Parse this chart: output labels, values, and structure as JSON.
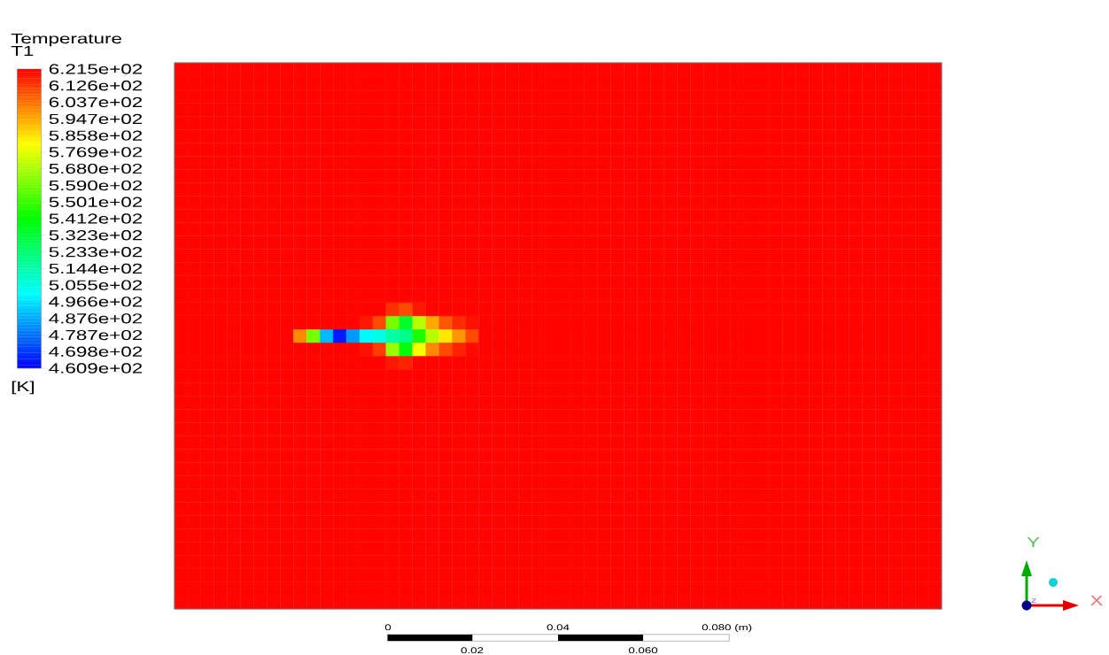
{
  "chart_data": {
    "type": "heatmap",
    "title": "Temperature",
    "subtitle": "T1",
    "clabel": "[K]",
    "annotations": [
      "0",
      "0.04",
      "0.080 (m)",
      "0.02",
      "0.060",
      "Y",
      "X",
      "Z"
    ],
    "categories": [
      null,
      null,
      null,
      null,
      null,
      null,
      null,
      null,
      null,
      null,
      null,
      null,
      null,
      null,
      null,
      null,
      null,
      null,
      null,
      null,
      null,
      null,
      null,
      null,
      null,
      null,
      null,
      null,
      null,
      null,
      null,
      null,
      null,
      null,
      null,
      null,
      null,
      null,
      null,
      null,
      null,
      null,
      null,
      null,
      null,
      null,
      null,
      null,
      null,
      null,
      null,
      null,
      null,
      null,
      null,
      null,
      null,
      null
    ],
    "y_categories": [
      null,
      null,
      null,
      null,
      null,
      null,
      null,
      null,
      null,
      null,
      null,
      null,
      null,
      null,
      null,
      null,
      null,
      null,
      null,
      null,
      null,
      null,
      null,
      null,
      null,
      null,
      null,
      null,
      null,
      null,
      null,
      null,
      null,
      null,
      null,
      null,
      null,
      null,
      null,
      null,
      null
    ],
    "clim": [
      460.9,
      621.5
    ],
    "cticks": [
      {
        "value": 621.5,
        "label": "6.215e+02"
      },
      {
        "value": 612.6,
        "label": "6.126e+02"
      },
      {
        "value": 603.7,
        "label": "6.037e+02"
      },
      {
        "value": 594.7,
        "label": "5.947e+02"
      },
      {
        "value": 585.8,
        "label": "5.858e+02"
      },
      {
        "value": 576.9,
        "label": "5.769e+02"
      },
      {
        "value": 568.0,
        "label": "5.680e+02"
      },
      {
        "value": 559.0,
        "label": "5.590e+02"
      },
      {
        "value": 550.1,
        "label": "5.501e+02"
      },
      {
        "value": 541.2,
        "label": "5.412e+02"
      },
      {
        "value": 532.3,
        "label": "5.323e+02"
      },
      {
        "value": 523.3,
        "label": "5.233e+02"
      },
      {
        "value": 514.4,
        "label": "5.144e+02"
      },
      {
        "value": 505.5,
        "label": "5.055e+02"
      },
      {
        "value": 496.6,
        "label": "4.966e+02"
      },
      {
        "value": 487.6,
        "label": "4.876e+02"
      },
      {
        "value": 478.7,
        "label": "4.787e+02"
      },
      {
        "value": 469.8,
        "label": "4.698e+02"
      },
      {
        "value": 460.9,
        "label": "4.609e+02"
      }
    ],
    "cells": [
      [
        621,
        621,
        621,
        621,
        621,
        621,
        621,
        621,
        621,
        621,
        621,
        621,
        621,
        621,
        621,
        621,
        621,
        621,
        621,
        621,
        621,
        621,
        621,
        621,
        621,
        621,
        621,
        621,
        621,
        621,
        621,
        621,
        621,
        621,
        621,
        621,
        621,
        621,
        621,
        621,
        621,
        621,
        621,
        621,
        621,
        621,
        621,
        621,
        621,
        621,
        621,
        621,
        621,
        621,
        621,
        621,
        621,
        621
      ],
      [
        621,
        621,
        621,
        621,
        621,
        621,
        621,
        621,
        621,
        621,
        621,
        621,
        621,
        621,
        621,
        621,
        621,
        621,
        621,
        621,
        621,
        621,
        621,
        621,
        621,
        621,
        621,
        621,
        621,
        621,
        621,
        621,
        621,
        621,
        621,
        621,
        621,
        621,
        621,
        621,
        621,
        621,
        621,
        621,
        621,
        621,
        621,
        621,
        621,
        621,
        621,
        621,
        621,
        621,
        621,
        621,
        621,
        621
      ],
      [
        621,
        621,
        621,
        621,
        621,
        621,
        621,
        621,
        621,
        621,
        621,
        621,
        621,
        621,
        621,
        621,
        621,
        621,
        621,
        621,
        621,
        621,
        621,
        621,
        621,
        621,
        621,
        621,
        621,
        621,
        621,
        621,
        621,
        621,
        621,
        621,
        621,
        621,
        621,
        621,
        621,
        621,
        621,
        621,
        621,
        621,
        621,
        621,
        621,
        621,
        621,
        621,
        621,
        621,
        621,
        621,
        621,
        621
      ],
      [
        621,
        621,
        621,
        621,
        621,
        621,
        621,
        621,
        621,
        621,
        621,
        621,
        621,
        621,
        621,
        621,
        621,
        621,
        621,
        621,
        621,
        621,
        621,
        621,
        621,
        621,
        621,
        621,
        621,
        621,
        621,
        621,
        621,
        621,
        621,
        621,
        621,
        621,
        621,
        621,
        621,
        621,
        621,
        621,
        621,
        621,
        621,
        621,
        621,
        621,
        621,
        621,
        621,
        621,
        621,
        621,
        621,
        621
      ],
      [
        621,
        621,
        621,
        621,
        621,
        621,
        621,
        621,
        621,
        621,
        621,
        621,
        621,
        621,
        621,
        621,
        621,
        621,
        621,
        621,
        621,
        621,
        621,
        621,
        621,
        621,
        621,
        621,
        621,
        621,
        621,
        621,
        621,
        621,
        621,
        621,
        621,
        621,
        621,
        621,
        621,
        621,
        621,
        621,
        621,
        621,
        621,
        621,
        621,
        621,
        621,
        621,
        621,
        621,
        621,
        621,
        621,
        621
      ],
      [
        621,
        621,
        621,
        621,
        621,
        621,
        621,
        621,
        621,
        621,
        621,
        621,
        621,
        621,
        621,
        621,
        621,
        621,
        621,
        621,
        621,
        621,
        621,
        621,
        621,
        621,
        621,
        621,
        621,
        621,
        621,
        621,
        621,
        621,
        621,
        621,
        621,
        621,
        621,
        621,
        621,
        621,
        621,
        621,
        621,
        621,
        621,
        621,
        621,
        621,
        621,
        621,
        621,
        621,
        621,
        621,
        621,
        621
      ],
      [
        621,
        621,
        621,
        621,
        621,
        621,
        621,
        621,
        621,
        621,
        621,
        621,
        621,
        621,
        621,
        621,
        621,
        621,
        621,
        621,
        621,
        621,
        621,
        621,
        621,
        621,
        621,
        621,
        621,
        621,
        621,
        621,
        621,
        621,
        621,
        621,
        621,
        621,
        621,
        621,
        621,
        621,
        621,
        621,
        621,
        621,
        621,
        621,
        621,
        621,
        621,
        621,
        621,
        621,
        621,
        621,
        621,
        621
      ],
      [
        621,
        621,
        621,
        621,
        621,
        621,
        621,
        621,
        621,
        621,
        621,
        621,
        621,
        621,
        621,
        621,
        621,
        621,
        621,
        621,
        621,
        621,
        621,
        621,
        621,
        621,
        621,
        621,
        621,
        621,
        621,
        621,
        621,
        621,
        621,
        621,
        621,
        621,
        621,
        621,
        621,
        621,
        621,
        621,
        621,
        621,
        621,
        621,
        621,
        621,
        621,
        621,
        621,
        621,
        621,
        621,
        621,
        621
      ],
      [
        621,
        621,
        621,
        621,
        621,
        621,
        621,
        621,
        621,
        621,
        621,
        621,
        621,
        621,
        621,
        621,
        621,
        621,
        621,
        621,
        621,
        621,
        621,
        621,
        621,
        621,
        621,
        621,
        621,
        621,
        621,
        621,
        621,
        621,
        621,
        621,
        621,
        621,
        621,
        621,
        621,
        621,
        621,
        621,
        621,
        621,
        621,
        621,
        621,
        621,
        621,
        621,
        621,
        621,
        621,
        621,
        621,
        621
      ],
      [
        621,
        621,
        621,
        621,
        621,
        621,
        621,
        621,
        621,
        621,
        621,
        621,
        621,
        621,
        621,
        621,
        621,
        621,
        621,
        621,
        621,
        621,
        621,
        621,
        621,
        621,
        621,
        621,
        621,
        621,
        621,
        621,
        621,
        621,
        621,
        621,
        621,
        621,
        621,
        621,
        621,
        621,
        621,
        621,
        621,
        621,
        621,
        621,
        621,
        621,
        621,
        621,
        621,
        621,
        621,
        621,
        621,
        621
      ],
      [
        621,
        621,
        621,
        621,
        621,
        621,
        621,
        621,
        621,
        621,
        621,
        621,
        621,
        621,
        621,
        621,
        621,
        621,
        621,
        621,
        621,
        621,
        621,
        621,
        621,
        621,
        621,
        621,
        621,
        621,
        621,
        621,
        621,
        621,
        621,
        621,
        621,
        621,
        621,
        621,
        621,
        621,
        621,
        621,
        621,
        621,
        621,
        621,
        621,
        621,
        621,
        621,
        621,
        621,
        621,
        621,
        621,
        621
      ],
      [
        621,
        621,
        621,
        621,
        621,
        621,
        621,
        621,
        621,
        621,
        621,
        621,
        621,
        621,
        621,
        621,
        621,
        621,
        621,
        621,
        621,
        621,
        621,
        621,
        621,
        621,
        621,
        621,
        621,
        621,
        621,
        621,
        621,
        621,
        621,
        621,
        621,
        621,
        621,
        621,
        621,
        621,
        621,
        621,
        621,
        621,
        621,
        621,
        621,
        621,
        621,
        621,
        621,
        621,
        621,
        621,
        621,
        621
      ],
      [
        621,
        621,
        621,
        621,
        621,
        621,
        621,
        621,
        621,
        621,
        621,
        621,
        621,
        621,
        621,
        621,
        621,
        621,
        621,
        621,
        621,
        621,
        621,
        621,
        621,
        621,
        621,
        621,
        621,
        621,
        621,
        621,
        621,
        621,
        621,
        621,
        621,
        621,
        621,
        621,
        621,
        621,
        621,
        621,
        621,
        621,
        621,
        621,
        621,
        621,
        621,
        621,
        621,
        621,
        621,
        621,
        621,
        621
      ],
      [
        621,
        621,
        621,
        621,
        621,
        621,
        621,
        621,
        621,
        621,
        621,
        621,
        621,
        621,
        621,
        621,
        621,
        621,
        621,
        621,
        621,
        621,
        621,
        621,
        621,
        621,
        621,
        621,
        621,
        621,
        621,
        621,
        621,
        621,
        621,
        621,
        621,
        621,
        621,
        621,
        621,
        621,
        621,
        621,
        621,
        621,
        621,
        621,
        621,
        621,
        621,
        621,
        621,
        621,
        621,
        621,
        621,
        621
      ],
      [
        621,
        621,
        621,
        621,
        621,
        621,
        621,
        621,
        621,
        621,
        621,
        621,
        621,
        621,
        621,
        621,
        621,
        621,
        621,
        621,
        621,
        621,
        621,
        621,
        621,
        621,
        621,
        621,
        621,
        621,
        621,
        621,
        621,
        621,
        621,
        621,
        621,
        621,
        621,
        621,
        621,
        621,
        621,
        621,
        621,
        621,
        621,
        621,
        621,
        621,
        621,
        621,
        621,
        621,
        621,
        621,
        621,
        621
      ],
      [
        621,
        621,
        621,
        621,
        621,
        621,
        621,
        621,
        621,
        621,
        621,
        621,
        621,
        621,
        621,
        621,
        621,
        621,
        621,
        621,
        621,
        621,
        621,
        621,
        621,
        621,
        621,
        621,
        621,
        621,
        621,
        621,
        621,
        621,
        621,
        621,
        621,
        621,
        621,
        621,
        621,
        621,
        621,
        621,
        621,
        621,
        621,
        621,
        621,
        621,
        621,
        621,
        621,
        621,
        621,
        621,
        621,
        621
      ],
      [
        621,
        621,
        621,
        621,
        621,
        621,
        621,
        621,
        621,
        621,
        621,
        621,
        621,
        621,
        621,
        621,
        621,
        621,
        621,
        621,
        621,
        621,
        621,
        621,
        621,
        621,
        621,
        621,
        621,
        621,
        621,
        621,
        621,
        621,
        621,
        621,
        621,
        621,
        621,
        621,
        621,
        621,
        621,
        621,
        621,
        621,
        621,
        621,
        621,
        621,
        621,
        621,
        621,
        621,
        621,
        621,
        621,
        621
      ],
      [
        621,
        621,
        621,
        621,
        621,
        621,
        621,
        621,
        621,
        621,
        621,
        621,
        621,
        621,
        621,
        621,
        621,
        621,
        621,
        621,
        621,
        621,
        621,
        621,
        621,
        621,
        621,
        621,
        621,
        621,
        621,
        621,
        621,
        621,
        621,
        621,
        621,
        621,
        621,
        621,
        621,
        621,
        621,
        621,
        621,
        621,
        621,
        621,
        621,
        621,
        621,
        621,
        621,
        621,
        621,
        621,
        621,
        621
      ],
      [
        621,
        621,
        621,
        621,
        621,
        621,
        621,
        621,
        621,
        621,
        621,
        621,
        621,
        621,
        621,
        621,
        614,
        610,
        618,
        621,
        621,
        621,
        621,
        621,
        621,
        621,
        621,
        621,
        621,
        621,
        621,
        621,
        621,
        621,
        621,
        621,
        621,
        621,
        621,
        621,
        621,
        621,
        621,
        621,
        621,
        621,
        621,
        621,
        621,
        621,
        621,
        621,
        621,
        621,
        621,
        621,
        621,
        621
      ],
      [
        621,
        621,
        621,
        621,
        621,
        621,
        621,
        621,
        621,
        621,
        621,
        621,
        621,
        621,
        618,
        610,
        560,
        535,
        570,
        595,
        608,
        615,
        619,
        621,
        621,
        621,
        621,
        621,
        621,
        621,
        621,
        621,
        621,
        621,
        621,
        621,
        621,
        621,
        621,
        621,
        621,
        621,
        621,
        621,
        621,
        621,
        621,
        621,
        621,
        621,
        621,
        621,
        621,
        621,
        621,
        621,
        621,
        621
      ],
      [
        621,
        621,
        621,
        621,
        621,
        621,
        621,
        621,
        621,
        600,
        560,
        490,
        465,
        485,
        500,
        505,
        515,
        520,
        545,
        570,
        585,
        598,
        610,
        621,
        621,
        621,
        621,
        621,
        621,
        621,
        621,
        621,
        621,
        621,
        621,
        621,
        621,
        621,
        621,
        621,
        621,
        621,
        621,
        621,
        621,
        621,
        621,
        621,
        621,
        621,
        621,
        621,
        621,
        621,
        621,
        621,
        621,
        621
      ],
      [
        621,
        621,
        621,
        621,
        621,
        621,
        621,
        621,
        621,
        621,
        621,
        621,
        621,
        621,
        619,
        612,
        565,
        540,
        580,
        600,
        610,
        616,
        620,
        621,
        621,
        621,
        621,
        621,
        621,
        621,
        621,
        621,
        621,
        621,
        621,
        621,
        621,
        621,
        621,
        621,
        621,
        621,
        621,
        621,
        621,
        621,
        621,
        621,
        621,
        621,
        621,
        621,
        621,
        621,
        621,
        621,
        621,
        621
      ],
      [
        621,
        621,
        621,
        621,
        621,
        621,
        621,
        621,
        621,
        621,
        621,
        621,
        621,
        621,
        621,
        621,
        618,
        616,
        621,
        621,
        621,
        621,
        621,
        621,
        621,
        621,
        621,
        621,
        621,
        621,
        621,
        621,
        621,
        621,
        621,
        621,
        621,
        621,
        621,
        621,
        621,
        621,
        621,
        621,
        621,
        621,
        621,
        621,
        621,
        621,
        621,
        621,
        621,
        621,
        621,
        621,
        621,
        621
      ],
      [
        621,
        621,
        621,
        621,
        621,
        621,
        621,
        621,
        621,
        621,
        621,
        621,
        621,
        621,
        621,
        621,
        621,
        621,
        621,
        621,
        621,
        621,
        621,
        621,
        621,
        621,
        621,
        621,
        621,
        621,
        621,
        621,
        621,
        621,
        621,
        621,
        621,
        621,
        621,
        621,
        621,
        621,
        621,
        621,
        621,
        621,
        621,
        621,
        621,
        621,
        621,
        621,
        621,
        621,
        621,
        621,
        621,
        621
      ],
      [
        621,
        621,
        621,
        621,
        621,
        621,
        621,
        621,
        621,
        621,
        621,
        621,
        621,
        621,
        621,
        621,
        621,
        621,
        621,
        621,
        621,
        621,
        621,
        621,
        621,
        621,
        621,
        621,
        621,
        621,
        621,
        621,
        621,
        621,
        621,
        621,
        621,
        621,
        621,
        621,
        621,
        621,
        621,
        621,
        621,
        621,
        621,
        621,
        621,
        621,
        621,
        621,
        621,
        621,
        621,
        621,
        621,
        621
      ],
      [
        621,
        621,
        621,
        621,
        621,
        621,
        621,
        621,
        621,
        621,
        621,
        621,
        621,
        621,
        621,
        621,
        621,
        621,
        621,
        621,
        621,
        621,
        621,
        621,
        621,
        621,
        621,
        621,
        621,
        621,
        621,
        621,
        621,
        621,
        621,
        621,
        621,
        621,
        621,
        621,
        621,
        621,
        621,
        621,
        621,
        621,
        621,
        621,
        621,
        621,
        621,
        621,
        621,
        621,
        621,
        621,
        621,
        621
      ],
      [
        621,
        621,
        621,
        621,
        621,
        621,
        621,
        621,
        621,
        621,
        621,
        621,
        621,
        621,
        621,
        621,
        621,
        621,
        621,
        621,
        621,
        621,
        621,
        621,
        621,
        621,
        621,
        621,
        621,
        621,
        621,
        621,
        621,
        621,
        621,
        621,
        621,
        621,
        621,
        621,
        621,
        621,
        621,
        621,
        621,
        621,
        621,
        621,
        621,
        621,
        621,
        621,
        621,
        621,
        621,
        621,
        621,
        621
      ],
      [
        621,
        621,
        621,
        621,
        621,
        621,
        621,
        621,
        621,
        621,
        621,
        621,
        621,
        621,
        621,
        621,
        621,
        621,
        621,
        621,
        621,
        621,
        621,
        621,
        621,
        621,
        621,
        621,
        621,
        621,
        621,
        621,
        621,
        621,
        621,
        621,
        621,
        621,
        621,
        621,
        621,
        621,
        621,
        621,
        621,
        621,
        621,
        621,
        621,
        621,
        621,
        621,
        621,
        621,
        621,
        621,
        621,
        621
      ],
      [
        621,
        621,
        621,
        621,
        621,
        621,
        621,
        621,
        621,
        621,
        621,
        621,
        621,
        621,
        621,
        621,
        621,
        621,
        621,
        621,
        621,
        621,
        621,
        621,
        621,
        621,
        621,
        621,
        621,
        621,
        621,
        621,
        621,
        621,
        621,
        621,
        621,
        621,
        621,
        621,
        621,
        621,
        621,
        621,
        621,
        621,
        621,
        621,
        621,
        621,
        621,
        621,
        621,
        621,
        621,
        621,
        621,
        621
      ],
      [
        621,
        621,
        621,
        621,
        621,
        621,
        621,
        621,
        621,
        621,
        621,
        621,
        621,
        621,
        621,
        621,
        621,
        621,
        621,
        621,
        621,
        621,
        621,
        621,
        621,
        621,
        621,
        621,
        621,
        621,
        621,
        621,
        621,
        621,
        621,
        621,
        621,
        621,
        621,
        621,
        621,
        621,
        621,
        621,
        621,
        621,
        621,
        621,
        621,
        621,
        621,
        621,
        621,
        621,
        621,
        621,
        621,
        621
      ],
      [
        621,
        621,
        621,
        621,
        621,
        621,
        621,
        621,
        621,
        621,
        621,
        621,
        621,
        621,
        621,
        621,
        621,
        621,
        621,
        621,
        621,
        621,
        621,
        621,
        621,
        621,
        621,
        621,
        621,
        621,
        621,
        621,
        621,
        621,
        621,
        621,
        621,
        621,
        621,
        621,
        621,
        621,
        621,
        621,
        621,
        621,
        621,
        621,
        621,
        621,
        621,
        621,
        621,
        621,
        621,
        621,
        621,
        621
      ],
      [
        621,
        621,
        621,
        621,
        621,
        621,
        621,
        621,
        621,
        621,
        621,
        621,
        621,
        621,
        621,
        621,
        621,
        621,
        621,
        621,
        621,
        621,
        621,
        621,
        621,
        621,
        621,
        621,
        621,
        621,
        621,
        621,
        621,
        621,
        621,
        621,
        621,
        621,
        621,
        621,
        621,
        621,
        621,
        621,
        621,
        621,
        621,
        621,
        621,
        621,
        621,
        621,
        621,
        621,
        621,
        621,
        621,
        621
      ],
      [
        621,
        621,
        621,
        621,
        621,
        621,
        621,
        621,
        621,
        621,
        621,
        621,
        621,
        621,
        621,
        621,
        621,
        621,
        621,
        621,
        621,
        621,
        621,
        621,
        621,
        621,
        621,
        621,
        621,
        621,
        621,
        621,
        621,
        621,
        621,
        621,
        621,
        621,
        621,
        621,
        621,
        621,
        621,
        621,
        621,
        621,
        621,
        621,
        621,
        621,
        621,
        621,
        621,
        621,
        621,
        621,
        621,
        621
      ],
      [
        621,
        621,
        621,
        621,
        621,
        621,
        621,
        621,
        621,
        621,
        621,
        621,
        621,
        621,
        621,
        621,
        621,
        621,
        621,
        621,
        621,
        621,
        621,
        621,
        621,
        621,
        621,
        621,
        621,
        621,
        621,
        621,
        621,
        621,
        621,
        621,
        621,
        621,
        621,
        621,
        621,
        621,
        621,
        621,
        621,
        621,
        621,
        621,
        621,
        621,
        621,
        621,
        621,
        621,
        621,
        621,
        621,
        621
      ],
      [
        621,
        621,
        621,
        621,
        621,
        621,
        621,
        621,
        621,
        621,
        621,
        621,
        621,
        621,
        621,
        621,
        621,
        621,
        621,
        621,
        621,
        621,
        621,
        621,
        621,
        621,
        621,
        621,
        621,
        621,
        621,
        621,
        621,
        621,
        621,
        621,
        621,
        621,
        621,
        621,
        621,
        621,
        621,
        621,
        621,
        621,
        621,
        621,
        621,
        621,
        621,
        621,
        621,
        621,
        621,
        621,
        621,
        621
      ],
      [
        621,
        621,
        621,
        621,
        621,
        621,
        621,
        621,
        621,
        621,
        621,
        621,
        621,
        621,
        621,
        621,
        621,
        621,
        621,
        621,
        621,
        621,
        621,
        621,
        621,
        621,
        621,
        621,
        621,
        621,
        621,
        621,
        621,
        621,
        621,
        621,
        621,
        621,
        621,
        621,
        621,
        621,
        621,
        621,
        621,
        621,
        621,
        621,
        621,
        621,
        621,
        621,
        621,
        621,
        621,
        621,
        621,
        621
      ],
      [
        621,
        621,
        621,
        621,
        621,
        621,
        621,
        621,
        621,
        621,
        621,
        621,
        621,
        621,
        621,
        621,
        621,
        621,
        621,
        621,
        621,
        621,
        621,
        621,
        621,
        621,
        621,
        621,
        621,
        621,
        621,
        621,
        621,
        621,
        621,
        621,
        621,
        621,
        621,
        621,
        621,
        621,
        621,
        621,
        621,
        621,
        621,
        621,
        621,
        621,
        621,
        621,
        621,
        621,
        621,
        621,
        621,
        621
      ],
      [
        621,
        621,
        621,
        621,
        621,
        621,
        621,
        621,
        621,
        621,
        621,
        621,
        621,
        621,
        621,
        621,
        621,
        621,
        621,
        621,
        621,
        621,
        621,
        621,
        621,
        621,
        621,
        621,
        621,
        621,
        621,
        621,
        621,
        621,
        621,
        621,
        621,
        621,
        621,
        621,
        621,
        621,
        621,
        621,
        621,
        621,
        621,
        621,
        621,
        621,
        621,
        621,
        621,
        621,
        621,
        621,
        621,
        621
      ],
      [
        621,
        621,
        621,
        621,
        621,
        621,
        621,
        621,
        621,
        621,
        621,
        621,
        621,
        621,
        621,
        621,
        621,
        621,
        621,
        621,
        621,
        621,
        621,
        621,
        621,
        621,
        621,
        621,
        621,
        621,
        621,
        621,
        621,
        621,
        621,
        621,
        621,
        621,
        621,
        621,
        621,
        621,
        621,
        621,
        621,
        621,
        621,
        621,
        621,
        621,
        621,
        621,
        621,
        621,
        621,
        621,
        621,
        621
      ],
      [
        621,
        621,
        621,
        621,
        621,
        621,
        621,
        621,
        621,
        621,
        621,
        621,
        621,
        621,
        621,
        621,
        621,
        621,
        621,
        621,
        621,
        621,
        621,
        621,
        621,
        621,
        621,
        621,
        621,
        621,
        621,
        621,
        621,
        621,
        621,
        621,
        621,
        621,
        621,
        621,
        621,
        621,
        621,
        621,
        621,
        621,
        621,
        621,
        621,
        621,
        621,
        621,
        621,
        621,
        621,
        621,
        621,
        621
      ],
      [
        621,
        621,
        621,
        621,
        621,
        621,
        621,
        621,
        621,
        621,
        621,
        621,
        621,
        621,
        621,
        621,
        621,
        621,
        621,
        621,
        621,
        621,
        621,
        621,
        621,
        621,
        621,
        621,
        621,
        621,
        621,
        621,
        621,
        621,
        621,
        621,
        621,
        621,
        621,
        621,
        621,
        621,
        621,
        621,
        621,
        621,
        621,
        621,
        621,
        621,
        621,
        621,
        621,
        621,
        621,
        621,
        621,
        621
      ]
    ]
  }
}
